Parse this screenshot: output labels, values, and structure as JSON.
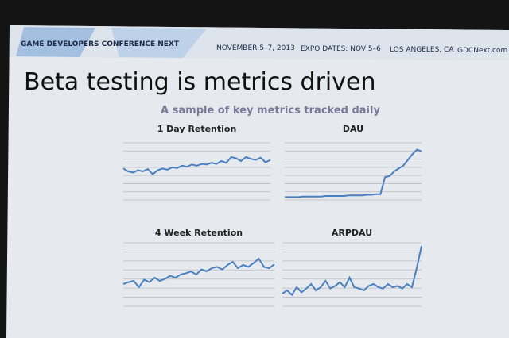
{
  "header": {
    "conference": "GAME DEVELOPERS CONFERENCE NEXT",
    "dates": "NOVEMBER 5–7, 2013",
    "expo": "EXPO DATES: NOV 5–6",
    "location": "LOS ANGELES, CA",
    "site": "GDCNext.com"
  },
  "slide": {
    "title": "Beta testing is metrics driven",
    "subtitle": "A sample of key metrics tracked daily"
  },
  "chart_data": [
    {
      "type": "line",
      "title": "1 Day Retention",
      "color": "#4a7fc0",
      "ylim": [
        0,
        100
      ],
      "values": [
        55,
        50,
        48,
        52,
        50,
        54,
        45,
        52,
        55,
        53,
        57,
        56,
        60,
        58,
        62,
        60,
        63,
        62,
        65,
        63,
        68,
        65,
        75,
        73,
        68,
        75,
        72,
        70,
        74,
        66,
        70
      ]
    },
    {
      "type": "line",
      "title": "DAU",
      "color": "#4a7fc0",
      "ylim": [
        0,
        100
      ],
      "values": [
        5,
        5,
        5,
        5,
        6,
        6,
        6,
        6,
        6,
        7,
        7,
        7,
        7,
        7,
        8,
        8,
        8,
        8,
        9,
        9,
        10,
        10,
        40,
        42,
        50,
        55,
        60,
        70,
        80,
        88,
        85
      ]
    },
    {
      "type": "line",
      "title": "4 Week Retention",
      "color": "#4a7fc0",
      "ylim": [
        0,
        100
      ],
      "values": [
        35,
        38,
        40,
        30,
        42,
        38,
        45,
        40,
        43,
        48,
        45,
        50,
        52,
        55,
        50,
        58,
        55,
        60,
        62,
        58,
        65,
        70,
        60,
        65,
        62,
        68,
        75,
        62,
        60,
        66
      ]
    },
    {
      "type": "line",
      "title": "ARPDAU",
      "color": "#4a7fc0",
      "ylim": [
        0,
        100
      ],
      "values": [
        20,
        25,
        18,
        30,
        22,
        28,
        35,
        25,
        30,
        40,
        28,
        32,
        38,
        30,
        45,
        30,
        28,
        25,
        32,
        35,
        30,
        28,
        35,
        30,
        32,
        28,
        35,
        30,
        60,
        95
      ]
    }
  ]
}
